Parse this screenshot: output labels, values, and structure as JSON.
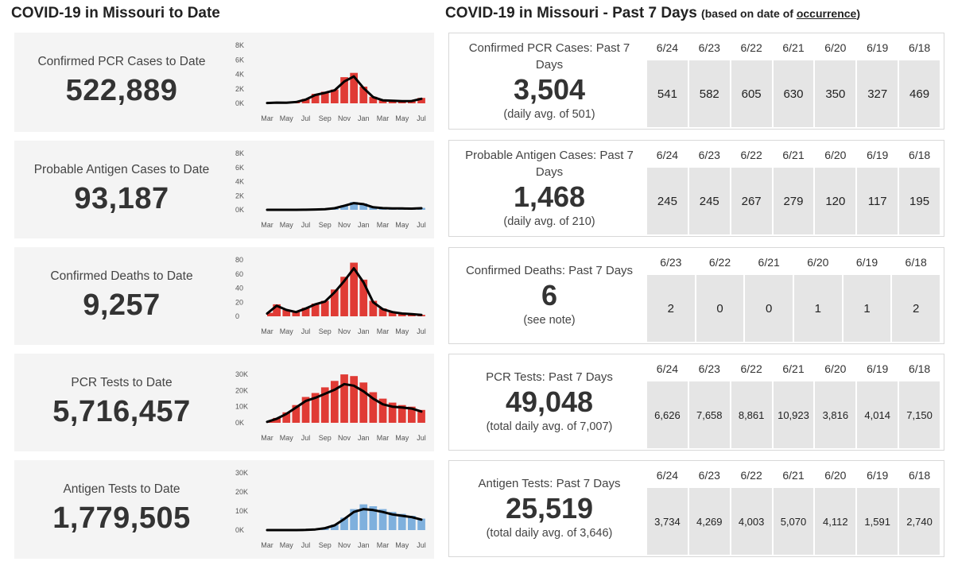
{
  "header": {
    "left_title": "COVID-19 in Missouri to Date",
    "right_title": "COVID-19 in Missouri - Past 7 Days",
    "right_note_prefix": "(based on date of ",
    "right_note_link": "occurrence",
    "right_note_suffix": ")"
  },
  "colors": {
    "red": "#e03b35",
    "blue": "#7fb0dd",
    "line": "#000000"
  },
  "to_date": [
    {
      "label": "Confirmed PCR Cases to Date",
      "value": "522,889"
    },
    {
      "label": "Probable Antigen Cases to Date",
      "value": "93,187"
    },
    {
      "label": "Confirmed Deaths to Date",
      "value": "9,257"
    },
    {
      "label": "PCR Tests to Date",
      "value": "5,716,457"
    },
    {
      "label": "Antigen Tests to Date",
      "value": "1,779,505"
    }
  ],
  "past7": [
    {
      "label": "Confirmed PCR Cases: Past 7 Days",
      "value": "3,504",
      "sub": "(daily avg. of 501)",
      "days": [
        "6/24",
        "6/23",
        "6/22",
        "6/21",
        "6/20",
        "6/19",
        "6/18"
      ],
      "values": [
        "541",
        "582",
        "605",
        "630",
        "350",
        "327",
        "469"
      ]
    },
    {
      "label": "Probable Antigen Cases: Past 7 Days",
      "value": "1,468",
      "sub": "(daily avg. of 210)",
      "days": [
        "6/24",
        "6/23",
        "6/22",
        "6/21",
        "6/20",
        "6/19",
        "6/18"
      ],
      "values": [
        "245",
        "245",
        "267",
        "279",
        "120",
        "117",
        "195"
      ]
    },
    {
      "label": "Confirmed Deaths: Past 7 Days",
      "value": "6",
      "sub": "(see note)",
      "days": [
        "6/23",
        "6/22",
        "6/21",
        "6/20",
        "6/19",
        "6/18"
      ],
      "values": [
        "2",
        "0",
        "0",
        "1",
        "1",
        "2"
      ]
    },
    {
      "label": "PCR Tests: Past 7 Days",
      "value": "49,048",
      "sub": "(total daily avg. of 7,007)",
      "days": [
        "6/24",
        "6/23",
        "6/22",
        "6/21",
        "6/20",
        "6/19",
        "6/18"
      ],
      "values": [
        "6,626",
        "7,658",
        "8,861",
        "10,923",
        "3,816",
        "4,014",
        "7,150"
      ]
    },
    {
      "label": "Antigen Tests: Past 7 Days",
      "value": "25,519",
      "sub": "(total daily avg. of 3,646)",
      "days": [
        "6/24",
        "6/23",
        "6/22",
        "6/21",
        "6/20",
        "6/19",
        "6/18"
      ],
      "values": [
        "3,734",
        "4,269",
        "4,003",
        "5,070",
        "4,112",
        "1,591",
        "2,740"
      ]
    }
  ],
  "chart_data": [
    {
      "type": "bar",
      "color": "red",
      "ylim": [
        0,
        8000
      ],
      "yticks": [
        0,
        2000,
        4000,
        6000,
        8000
      ],
      "ytick_labels": [
        "0K",
        "2K",
        "4K",
        "6K",
        "8K"
      ],
      "xtick_labels": [
        "Mar",
        "May",
        "Jul",
        "Sep",
        "Nov",
        "Jan",
        "Mar",
        "May",
        "Jul"
      ],
      "x_months": [
        "Mar",
        "Apr",
        "May",
        "Jun",
        "Jul",
        "Aug",
        "Sep",
        "Oct",
        "Nov",
        "Dec",
        "Jan",
        "Feb",
        "Mar",
        "Apr",
        "May",
        "Jun",
        "Jul"
      ],
      "bars": [
        50,
        120,
        80,
        200,
        600,
        1300,
        1600,
        1900,
        3600,
        4200,
        2300,
        900,
        450,
        380,
        300,
        330,
        750
      ],
      "avg": [
        40,
        100,
        80,
        180,
        520,
        1150,
        1450,
        1800,
        3000,
        3700,
        2100,
        850,
        420,
        360,
        300,
        320,
        620
      ]
    },
    {
      "type": "bar",
      "color": "blue",
      "ylim": [
        0,
        8000
      ],
      "yticks": [
        0,
        2000,
        4000,
        6000,
        8000
      ],
      "ytick_labels": [
        "0K",
        "2K",
        "4K",
        "6K",
        "8K"
      ],
      "xtick_labels": [
        "Mar",
        "May",
        "Jul",
        "Sep",
        "Nov",
        "Jan",
        "Mar",
        "May",
        "Jul"
      ],
      "x_months": [
        "Mar",
        "Apr",
        "May",
        "Jun",
        "Jul",
        "Aug",
        "Sep",
        "Oct",
        "Nov",
        "Dec",
        "Jan",
        "Feb",
        "Mar",
        "Apr",
        "May",
        "Jun",
        "Jul"
      ],
      "bars": [
        0,
        0,
        0,
        0,
        20,
        50,
        100,
        250,
        650,
        1100,
        900,
        400,
        260,
        220,
        200,
        180,
        270
      ],
      "avg": [
        0,
        0,
        0,
        0,
        15,
        40,
        90,
        220,
        580,
        950,
        800,
        360,
        240,
        200,
        190,
        170,
        230
      ]
    },
    {
      "type": "bar",
      "color": "red",
      "ylim": [
        0,
        80
      ],
      "yticks": [
        0,
        20,
        40,
        60,
        80
      ],
      "ytick_labels": [
        "0",
        "20",
        "40",
        "60",
        "80"
      ],
      "xtick_labels": [
        "Mar",
        "May",
        "Jul",
        "Sep",
        "Nov",
        "Jan",
        "Mar",
        "May",
        "Jul"
      ],
      "x_months": [
        "Mar",
        "Apr",
        "May",
        "Jun",
        "Jul",
        "Aug",
        "Sep",
        "Oct",
        "Nov",
        "Dec",
        "Jan",
        "Feb",
        "Mar",
        "Apr",
        "May",
        "Jun",
        "Jul"
      ],
      "bars": [
        5,
        17,
        9,
        6,
        12,
        18,
        22,
        38,
        56,
        76,
        52,
        22,
        11,
        6,
        4,
        3,
        2
      ],
      "avg": [
        4,
        15,
        9,
        6,
        11,
        17,
        21,
        34,
        50,
        68,
        48,
        20,
        10,
        6,
        4,
        3,
        2
      ]
    },
    {
      "type": "bar",
      "color": "red",
      "ylim": [
        0,
        35000
      ],
      "yticks": [
        0,
        10000,
        20000,
        30000
      ],
      "ytick_labels": [
        "0K",
        "10K",
        "20K",
        "30K"
      ],
      "xtick_labels": [
        "Mar",
        "May",
        "Jul",
        "Sep",
        "Nov",
        "Jan",
        "Mar",
        "May",
        "Jul"
      ],
      "x_months": [
        "Mar",
        "Apr",
        "May",
        "Jun",
        "Jul",
        "Aug",
        "Sep",
        "Oct",
        "Nov",
        "Dec",
        "Jan",
        "Feb",
        "Mar",
        "Apr",
        "May",
        "Jun",
        "Jul"
      ],
      "bars": [
        1000,
        3000,
        6500,
        11000,
        16000,
        18500,
        22000,
        26000,
        30000,
        29000,
        25000,
        19000,
        15000,
        12500,
        11000,
        10000,
        8000
      ],
      "avg": [
        600,
        2500,
        5500,
        9500,
        13500,
        15500,
        18000,
        20500,
        24000,
        23000,
        19500,
        15000,
        11500,
        10000,
        9500,
        8800,
        7000
      ]
    },
    {
      "type": "bar",
      "color": "blue",
      "ylim": [
        0,
        30000
      ],
      "yticks": [
        0,
        10000,
        20000,
        30000
      ],
      "ytick_labels": [
        "0K",
        "10K",
        "20K",
        "30K"
      ],
      "xtick_labels": [
        "Mar",
        "May",
        "Jul",
        "Sep",
        "Nov",
        "Jan",
        "Mar",
        "May",
        "Jul"
      ],
      "x_months": [
        "Mar",
        "Apr",
        "May",
        "Jun",
        "Jul",
        "Aug",
        "Sep",
        "Oct",
        "Nov",
        "Dec",
        "Jan",
        "Feb",
        "Mar",
        "Apr",
        "May",
        "Jun",
        "Jul"
      ],
      "bars": [
        0,
        0,
        0,
        0,
        100,
        400,
        1200,
        2800,
        6500,
        11000,
        13500,
        12500,
        11000,
        9500,
        8500,
        7500,
        6000
      ],
      "avg": [
        0,
        0,
        0,
        0,
        80,
        350,
        1000,
        2500,
        5800,
        9500,
        11000,
        10500,
        9500,
        8200,
        7500,
        6800,
        5500
      ]
    }
  ]
}
